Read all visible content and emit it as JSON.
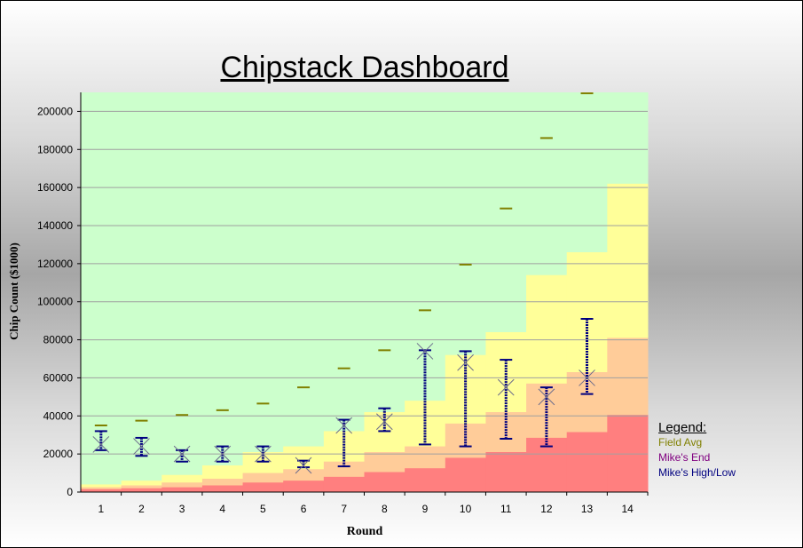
{
  "chart_data": {
    "type": "bar",
    "title": "Chipstack Dashboard",
    "xlabel": "Round",
    "ylabel": "Chip Count ($1000)",
    "ylim": [
      0,
      210000
    ],
    "yticks": [
      0,
      20000,
      40000,
      60000,
      80000,
      100000,
      120000,
      140000,
      160000,
      180000,
      200000
    ],
    "categories": [
      "1",
      "2",
      "3",
      "4",
      "5",
      "6",
      "7",
      "8",
      "9",
      "10",
      "11",
      "12",
      "13",
      "14"
    ],
    "grid": true,
    "background_bands": [
      {
        "color": "#ff7f7f",
        "values": [
          1500,
          2000,
          2500,
          3500,
          5000,
          6000,
          8000,
          10500,
          12500,
          18000,
          21000,
          28500,
          31500,
          40500
        ]
      },
      {
        "color": "#ffcc99",
        "values": [
          2500,
          3500,
          5000,
          7000,
          10000,
          12000,
          16000,
          21000,
          24000,
          36000,
          42000,
          57000,
          63000,
          81000
        ]
      },
      {
        "color": "#ffff99",
        "values": [
          4000,
          6000,
          9000,
          14000,
          21000,
          24000,
          32000,
          42000,
          48000,
          72000,
          84000,
          114000,
          126000,
          162000
        ]
      },
      {
        "color": "#ccffcc",
        "values": [
          210000,
          210000,
          210000,
          210000,
          210000,
          210000,
          210000,
          210000,
          210000,
          210000,
          210000,
          210000,
          210000,
          210000
        ]
      }
    ],
    "series": [
      {
        "name": "Field Avg",
        "color": "#808000",
        "values": [
          35000,
          37500,
          40500,
          43000,
          46500,
          55000,
          65000,
          74500,
          95500,
          119500,
          149000,
          186000,
          209500,
          null
        ]
      },
      {
        "name": "Mike's End",
        "color": "#800080",
        "values": [
          25000,
          24000,
          20000,
          20000,
          20000,
          14000,
          35000,
          37000,
          74000,
          68000,
          55000,
          50000,
          60000,
          null
        ]
      },
      {
        "name": "Mike's High/Low",
        "color": "#000080",
        "low": [
          22000,
          19000,
          16000,
          16000,
          16000,
          13000,
          13500,
          32000,
          25000,
          24000,
          28000,
          24000,
          51500,
          null
        ],
        "high": [
          32000,
          28500,
          22000,
          24000,
          24000,
          16500,
          38000,
          44000,
          74500,
          74000,
          69500,
          55000,
          91000,
          null
        ]
      }
    ],
    "legend": {
      "title": "Legend:",
      "placement": "bottom-right"
    }
  }
}
